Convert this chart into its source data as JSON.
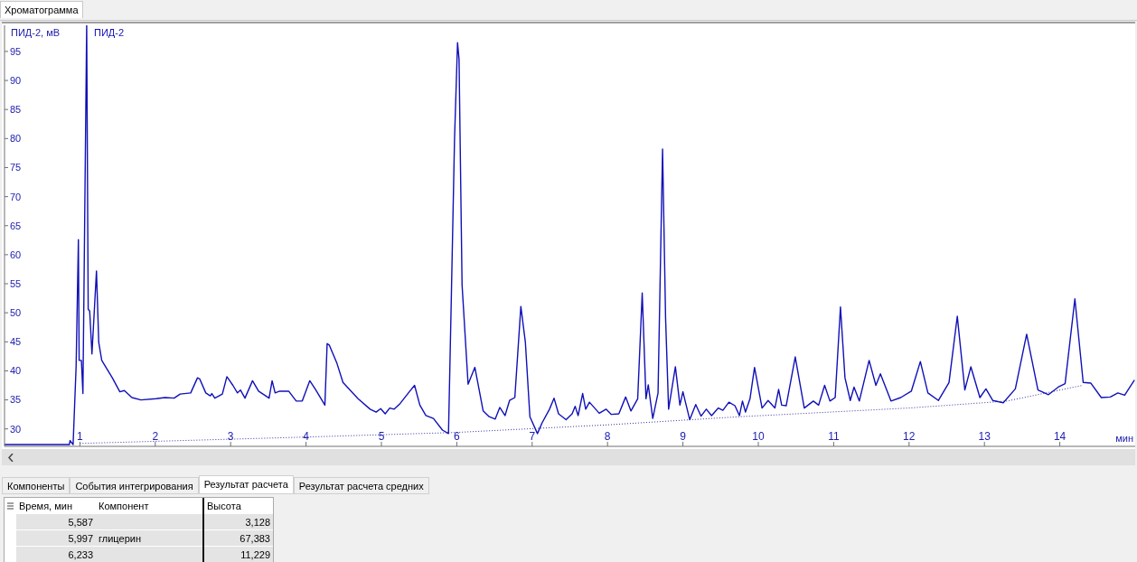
{
  "chart_data": {
    "type": "line",
    "title": "Хроматограмма",
    "xlabel": "мин",
    "ylabel": "ПИД-2, мВ",
    "xlim": [
      0,
      15
    ],
    "xticks": [
      1,
      2,
      3,
      4,
      5,
      6,
      7,
      8,
      9,
      10,
      11,
      12,
      13,
      14
    ],
    "ylim": [
      27,
      99.5
    ],
    "yticks": [
      30,
      35,
      40,
      45,
      50,
      55,
      60,
      65,
      70,
      75,
      80,
      85,
      90,
      95
    ],
    "marker": "none",
    "grid": false,
    "series": [
      {
        "name": "ПИД-2",
        "color": "#1010b8",
        "line_style": "solid",
        "x": [
          0,
          0.86,
          0.87,
          0.91,
          0.95,
          0.98,
          0.99,
          1.02,
          1.04,
          1.09,
          1.11,
          1.13,
          1.16,
          1.22,
          1.25,
          1.29,
          1.43,
          1.53,
          1.59,
          1.69,
          1.81,
          2.01,
          2.13,
          2.25,
          2.33,
          2.47,
          2.56,
          2.59,
          2.67,
          2.73,
          2.75,
          2.79,
          2.89,
          2.95,
          3.03,
          3.09,
          3.13,
          3.19,
          3.29,
          3.37,
          3.51,
          3.55,
          3.59,
          3.65,
          3.77,
          3.87,
          3.95,
          4.05,
          4.13,
          4.25,
          4.28,
          4.31,
          4.41,
          4.49,
          4.69,
          4.85,
          4.93,
          4.99,
          5.05,
          5.11,
          5.17,
          5.25,
          5.37,
          5.44,
          5.51,
          5.59,
          5.69,
          5.81,
          5.89,
          5.93,
          5.97,
          6.01,
          6.03,
          6.07,
          6.15,
          6.24,
          6.35,
          6.43,
          6.51,
          6.57,
          6.64,
          6.7,
          6.77,
          6.85,
          6.91,
          6.97,
          7.07,
          7.13,
          7.23,
          7.29,
          7.35,
          7.45,
          7.53,
          7.57,
          7.61,
          7.67,
          7.71,
          7.76,
          7.89,
          7.98,
          8.05,
          8.15,
          8.24,
          8.31,
          8.4,
          8.46,
          8.51,
          8.54,
          8.6,
          8.67,
          8.73,
          8.77,
          8.81,
          8.9,
          8.96,
          9,
          9.09,
          9.17,
          9.24,
          9.31,
          9.38,
          9.47,
          9.53,
          9.61,
          9.69,
          9.75,
          9.79,
          9.83,
          9.89,
          9.95,
          10.05,
          10.13,
          10.22,
          10.27,
          10.31,
          10.37,
          10.49,
          10.61,
          10.73,
          10.8,
          10.88,
          10.95,
          11.02,
          11.09,
          11.15,
          11.22,
          11.27,
          11.34,
          11.47,
          11.56,
          11.62,
          11.76,
          11.89,
          12.03,
          12.15,
          12.25,
          12.39,
          12.53,
          12.64,
          12.74,
          12.82,
          12.94,
          13.02,
          13.11,
          13.25,
          13.41,
          13.56,
          13.71,
          13.85,
          13.99,
          14.07,
          14.2,
          14.31,
          14.41,
          14.55,
          14.67,
          14.77,
          14.86,
          14.99
        ],
        "values": [
          27.3,
          27.3,
          28.0,
          27.3,
          40.8,
          62.6,
          41.8,
          41.8,
          36.1,
          99.5,
          50.6,
          50.3,
          42.9,
          57.2,
          44.9,
          41.8,
          38.8,
          36.4,
          36.6,
          35.4,
          35.0,
          35.2,
          35.4,
          35.3,
          36.0,
          36.2,
          38.8,
          38.6,
          36.2,
          35.7,
          36.1,
          35.3,
          36.0,
          39.0,
          37.5,
          36.2,
          36.7,
          35.3,
          38.3,
          36.5,
          35.3,
          38.3,
          36.2,
          36.5,
          36.5,
          34.8,
          34.8,
          38.3,
          36.7,
          34.1,
          44.7,
          44.4,
          41.3,
          38.0,
          35.2,
          33.4,
          32.9,
          33.5,
          32.6,
          33.6,
          33.4,
          34.4,
          36.4,
          37.5,
          34.1,
          32.3,
          31.8,
          29.8,
          29.2,
          54.2,
          79.9,
          96.5,
          93.7,
          54.8,
          37.7,
          40.6,
          33.1,
          32.1,
          31.7,
          33.7,
          32.3,
          34.9,
          35.4,
          51.1,
          44.9,
          32.1,
          29.2,
          31.0,
          33.4,
          35.3,
          32.6,
          31.6,
          32.6,
          33.9,
          32.3,
          36.1,
          33.4,
          34.6,
          32.7,
          33.4,
          32.5,
          32.6,
          35.5,
          33.1,
          35.2,
          53.4,
          35.2,
          37.6,
          31.8,
          36.2,
          78.2,
          49.1,
          33.4,
          40.7,
          34.1,
          36.4,
          31.6,
          34.2,
          32.2,
          33.4,
          32.3,
          33.6,
          33.2,
          34.6,
          34.0,
          32.3,
          34.8,
          32.9,
          35.2,
          40.6,
          33.6,
          34.9,
          33.6,
          36.8,
          34.1,
          34.0,
          42.4,
          33.6,
          34.8,
          34.1,
          37.5,
          34.8,
          35.4,
          51.0,
          38.8,
          34.9,
          37.2,
          34.8,
          41.8,
          37.5,
          39.5,
          34.8,
          35.4,
          36.5,
          41.6,
          36.2,
          34.9,
          38.0,
          49.4,
          36.7,
          40.7,
          35.4,
          36.9,
          34.9,
          34.5,
          36.9,
          46.3,
          36.7,
          35.9,
          37.3,
          37.8,
          52.4,
          38.0,
          37.9,
          35.4,
          35.5,
          36.2,
          35.8,
          38.4
        ]
      },
      {
        "color": "#3030a0",
        "line_style": "dotted",
        "x": [
          1,
          4,
          5,
          6,
          8,
          9.75,
          12,
          13.3,
          14.3
        ],
        "values": [
          27.5,
          28.6,
          29.0,
          29.4,
          30.7,
          32.1,
          33.6,
          34.8,
          37.5
        ]
      }
    ],
    "annotations": [
      "Компоненты",
      "События интегрирования",
      "Результат расчета",
      "Результат расчета средних",
      "Время, мин",
      "Компонент",
      "Высота",
      "5,587",
      "3,128",
      "5,997",
      "глицерин",
      "67,383",
      "6,233",
      "11,229"
    ]
  }
}
